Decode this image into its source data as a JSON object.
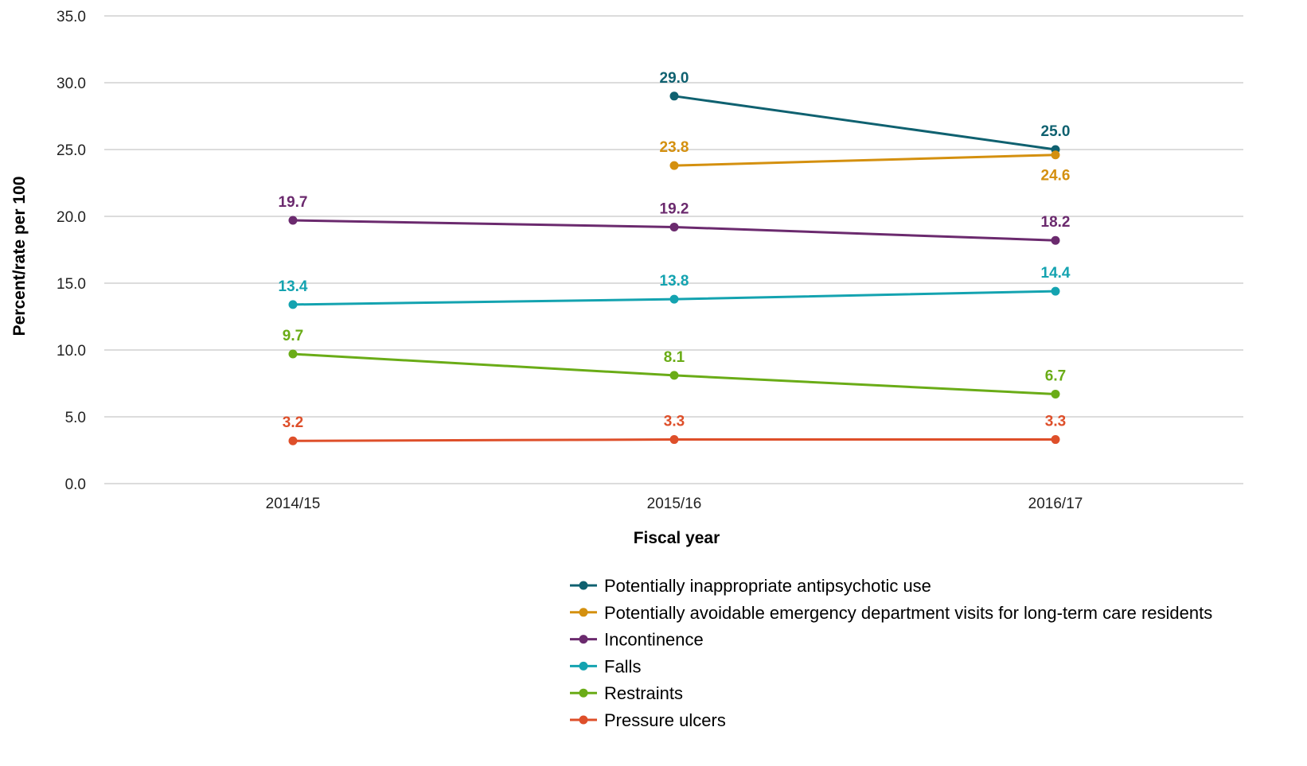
{
  "chart_data": {
    "type": "line",
    "xlabel": "Fiscal year",
    "ylabel": "Percent/rate per 100",
    "categories": [
      "2014/15",
      "2015/16",
      "2016/17"
    ],
    "ylim": [
      0,
      35
    ],
    "yticks": [
      0,
      5,
      10,
      15,
      20,
      25,
      30,
      35
    ],
    "ytick_labels": [
      "0.0",
      "5.0",
      "10.0",
      "15.0",
      "20.0",
      "25.0",
      "30.0",
      "35.0"
    ],
    "grid": "horizontal",
    "legend_position": "bottom-right",
    "series": [
      {
        "name": "Potentially inappropriate antipsychotic use",
        "color": "#0f6170",
        "values": [
          null,
          29.0,
          25.0
        ],
        "labels": [
          "",
          "29.0",
          "25.0"
        ],
        "label_position": [
          "above",
          "above",
          "above"
        ]
      },
      {
        "name": "Potentially avoidable emergency department visits for long-term care residents",
        "color": "#d4900f",
        "values": [
          null,
          23.8,
          24.6
        ],
        "labels": [
          "",
          "23.8",
          "24.6"
        ],
        "label_position": [
          "above",
          "above",
          "below"
        ]
      },
      {
        "name": "Incontinence",
        "color": "#6b2a6e",
        "values": [
          19.7,
          19.2,
          18.2
        ],
        "labels": [
          "19.7",
          "19.2",
          "18.2"
        ],
        "label_position": [
          "above",
          "above",
          "above"
        ]
      },
      {
        "name": "Falls",
        "color": "#14a3b0",
        "values": [
          13.4,
          13.8,
          14.4
        ],
        "labels": [
          "13.4",
          "13.8",
          "14.4"
        ],
        "label_position": [
          "above",
          "above",
          "above"
        ]
      },
      {
        "name": "Restraints",
        "color": "#6aac17",
        "values": [
          9.7,
          8.1,
          6.7
        ],
        "labels": [
          "9.7",
          "8.1",
          "6.7"
        ],
        "label_position": [
          "above",
          "above",
          "above"
        ]
      },
      {
        "name": "Pressure ulcers",
        "color": "#de4f2a",
        "values": [
          3.2,
          3.3,
          3.3
        ],
        "labels": [
          "3.2",
          "3.3",
          "3.3"
        ],
        "label_position": [
          "above",
          "above",
          "above"
        ]
      }
    ]
  }
}
